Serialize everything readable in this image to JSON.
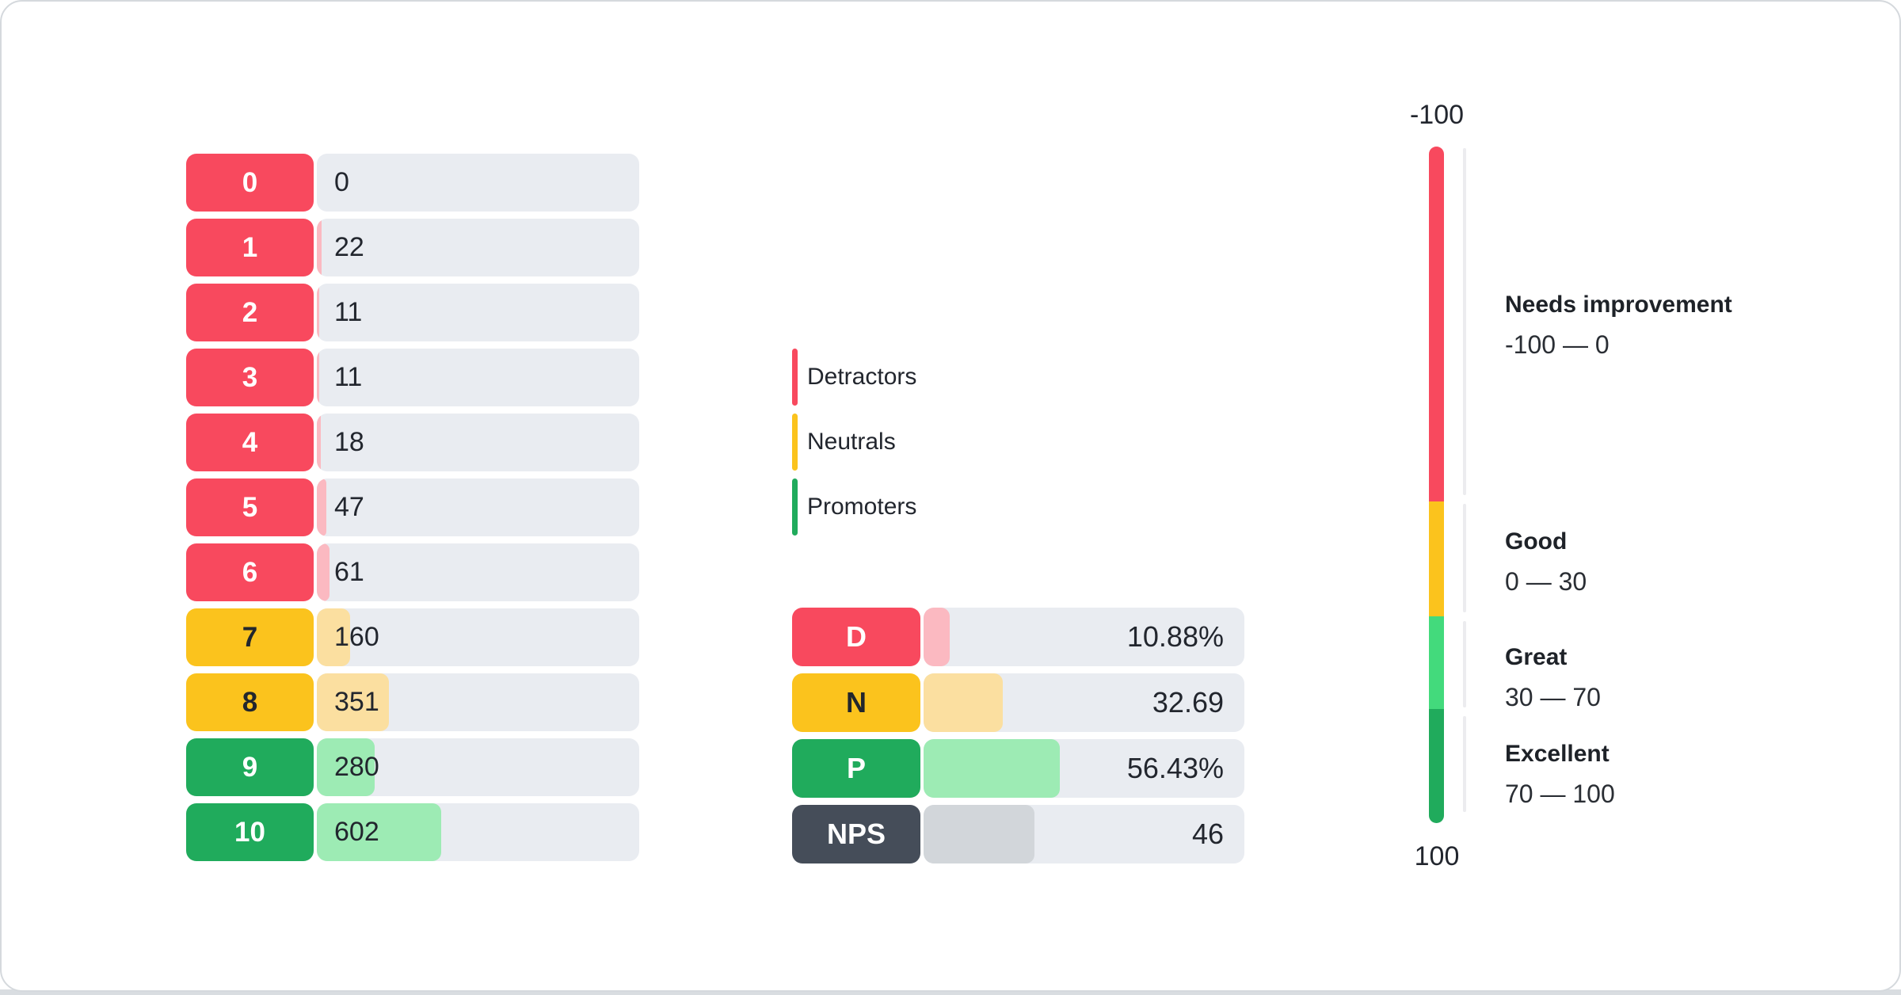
{
  "distribution": {
    "rows": [
      {
        "score": "0",
        "value": 0,
        "category": "detractor"
      },
      {
        "score": "1",
        "value": 22,
        "category": "detractor"
      },
      {
        "score": "2",
        "value": 11,
        "category": "detractor"
      },
      {
        "score": "3",
        "value": 11,
        "category": "detractor"
      },
      {
        "score": "4",
        "value": 18,
        "category": "detractor"
      },
      {
        "score": "5",
        "value": 47,
        "category": "detractor"
      },
      {
        "score": "6",
        "value": 61,
        "category": "detractor"
      },
      {
        "score": "7",
        "value": 160,
        "category": "neutral"
      },
      {
        "score": "8",
        "value": 351,
        "category": "neutral"
      },
      {
        "score": "9",
        "value": 280,
        "category": "promoter"
      },
      {
        "score": "10",
        "value": 602,
        "category": "promoter"
      }
    ]
  },
  "legend": {
    "items": [
      {
        "label": "Detractors",
        "color": "#f8495e"
      },
      {
        "label": "Neutrals",
        "color": "#fbc31d"
      },
      {
        "label": "Promoters",
        "color": "#20ab5c"
      }
    ]
  },
  "summary": {
    "rows": [
      {
        "label": "D",
        "display": "10.88%",
        "value": 10.88,
        "category": "detractor"
      },
      {
        "label": "N",
        "display": "32.69",
        "value": 32.69,
        "category": "neutral"
      },
      {
        "label": "P",
        "display": "56.43%",
        "value": 56.43,
        "category": "promoter"
      },
      {
        "label": "NPS",
        "display": "46",
        "value": 46,
        "category": "nps"
      }
    ]
  },
  "gauge": {
    "top_label": "-100",
    "bottom_label": "100",
    "zones": [
      {
        "title": "Needs improvement",
        "range": "-100 — 0",
        "color": "#f8495e"
      },
      {
        "title": "Good",
        "range": "0 — 30",
        "color": "#fbc31d"
      },
      {
        "title": "Great",
        "range": "30 — 70",
        "color": "#43da7c"
      },
      {
        "title": "Excellent",
        "range": "70 — 100",
        "color": "#20ab5c"
      }
    ]
  },
  "colors": {
    "detractor": "#f8495e",
    "detractor_fill": "#fbb9c1",
    "neutral": "#fbc31d",
    "neutral_fill": "#fbdfa0",
    "promoter": "#20ab5c",
    "promoter_fill": "#9debb4",
    "nps_badge": "#454d59",
    "nps_fill": "#d2d6da",
    "track": "#e9ecf1",
    "text": "#22262e"
  },
  "chart_data": [
    {
      "type": "bar",
      "title": "NPS score distribution",
      "orientation": "horizontal",
      "categories": [
        "0",
        "1",
        "2",
        "3",
        "4",
        "5",
        "6",
        "7",
        "8",
        "9",
        "10"
      ],
      "values": [
        0,
        22,
        11,
        11,
        18,
        47,
        61,
        160,
        351,
        280,
        602
      ],
      "series_groups": {
        "detractors": [
          "0",
          "1",
          "2",
          "3",
          "4",
          "5",
          "6"
        ],
        "neutrals": [
          "7",
          "8"
        ],
        "promoters": [
          "9",
          "10"
        ]
      },
      "legend": [
        "Detractors",
        "Neutrals",
        "Promoters"
      ],
      "legend_position": "middle-left"
    },
    {
      "type": "bar",
      "title": "NPS summary",
      "orientation": "horizontal",
      "categories": [
        "D",
        "N",
        "P",
        "NPS"
      ],
      "values": [
        10.88,
        32.69,
        56.43,
        46
      ],
      "value_labels": [
        "10.88%",
        "32.69",
        "56.43%",
        "46"
      ]
    },
    {
      "type": "gauge",
      "orientation": "vertical",
      "axis_min": -100,
      "axis_max": 100,
      "tick_labels": [
        "-100",
        "100"
      ],
      "zones": [
        {
          "label": "Needs improvement",
          "from": -100,
          "to": 0
        },
        {
          "label": "Good",
          "from": 0,
          "to": 30
        },
        {
          "label": "Great",
          "from": 30,
          "to": 70
        },
        {
          "label": "Excellent",
          "from": 70,
          "to": 100
        }
      ]
    }
  ]
}
